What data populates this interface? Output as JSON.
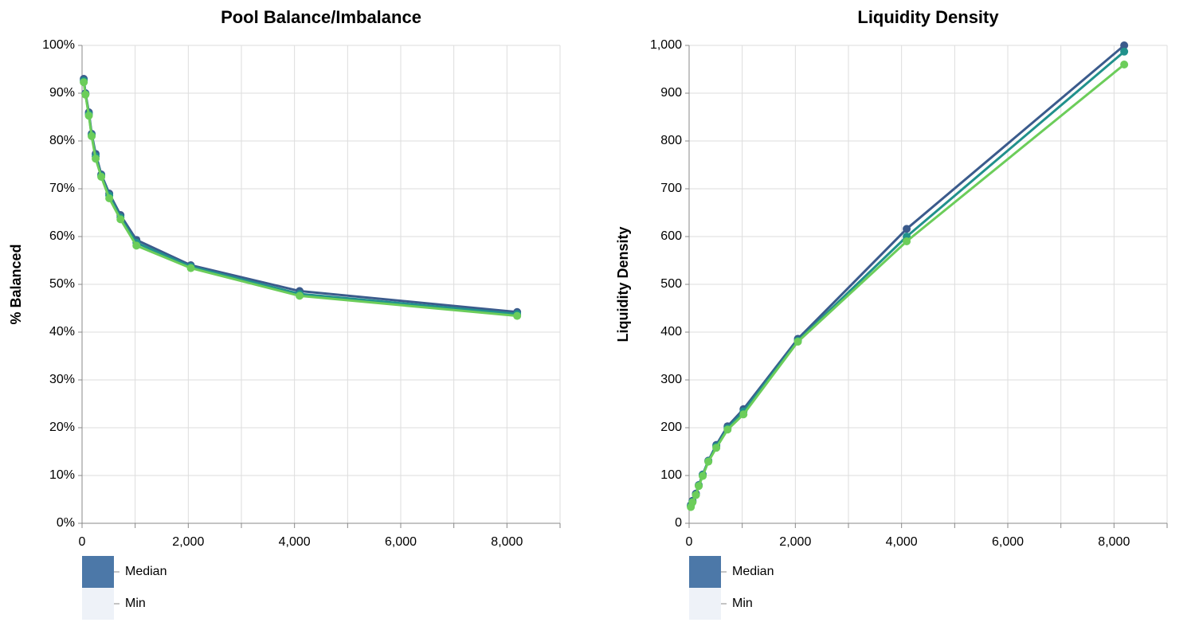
{
  "chart_data": [
    {
      "type": "line",
      "title": "Pool Balance/Imbalance",
      "ylabel": "% Balanced",
      "x": [
        32,
        64,
        128,
        181,
        256,
        362,
        512,
        724,
        1024,
        2048,
        4096,
        8192
      ],
      "series": [
        {
          "color": "#3b5b8c",
          "values": [
            93,
            90,
            86,
            81.5,
            77.3,
            73,
            69,
            64.5,
            59.3,
            54,
            48.6,
            44.2
          ]
        },
        {
          "color": "#21918c",
          "values": [
            92.6,
            89.8,
            85.6,
            81.2,
            76.8,
            72.7,
            68.6,
            64,
            58.7,
            53.7,
            48,
            43.8
          ]
        },
        {
          "color": "#6ccd5a",
          "values": [
            92.3,
            89.7,
            85.3,
            81,
            76.3,
            72.5,
            68,
            63.6,
            58.1,
            53.4,
            47.6,
            43.4
          ]
        }
      ],
      "xlim": [
        0,
        9000
      ],
      "xticks": [
        0,
        {
          "value": 2000,
          "label": "2,000"
        },
        {
          "value": 4000,
          "label": "4,000"
        },
        {
          "value": 6000,
          "label": "6,000"
        },
        {
          "value": 8000,
          "label": "8,000"
        }
      ],
      "x_minor_ticks": [
        1000,
        3000,
        5000,
        7000,
        9000
      ],
      "ylim": [
        0,
        100
      ],
      "yticks": [
        {
          "value": 0,
          "label": "0%"
        },
        {
          "value": 10,
          "label": "10%"
        },
        {
          "value": 20,
          "label": "20%"
        },
        {
          "value": 30,
          "label": "30%"
        },
        {
          "value": 40,
          "label": "40%"
        },
        {
          "value": 50,
          "label": "50%"
        },
        {
          "value": 60,
          "label": "60%"
        },
        {
          "value": 70,
          "label": "70%"
        },
        {
          "value": 80,
          "label": "80%"
        },
        {
          "value": 90,
          "label": "90%"
        },
        {
          "value": 100,
          "label": "100%"
        }
      ],
      "grid": true,
      "legend": {
        "labels": [
          "Median",
          "Min"
        ],
        "colors": [
          "#4c78a8",
          "#eef2f8"
        ]
      }
    },
    {
      "type": "line",
      "title": "Liquidity Density",
      "ylabel": "Liquidity Density",
      "x": [
        32,
        64,
        128,
        181,
        256,
        362,
        512,
        724,
        1024,
        2048,
        4096,
        8192
      ],
      "series": [
        {
          "color": "#3b5b8c",
          "values": [
            38,
            47,
            62,
            80,
            102,
            131,
            164,
            203,
            239,
            386,
            616,
            1000
          ]
        },
        {
          "color": "#21918c",
          "values": [
            36,
            45,
            60,
            79,
            101,
            130,
            161,
            199,
            234,
            382,
            600,
            987
          ]
        },
        {
          "color": "#6ccd5a",
          "values": [
            34,
            44,
            59,
            78,
            99,
            129,
            158,
            196,
            228,
            380,
            590,
            960
          ]
        }
      ],
      "xlim": [
        0,
        9000
      ],
      "xticks": [
        0,
        {
          "value": 2000,
          "label": "2,000"
        },
        {
          "value": 4000,
          "label": "4,000"
        },
        {
          "value": 6000,
          "label": "6,000"
        },
        {
          "value": 8000,
          "label": "8,000"
        }
      ],
      "x_minor_ticks": [
        1000,
        3000,
        5000,
        7000,
        9000
      ],
      "ylim": [
        0,
        1000
      ],
      "yticks": [
        0,
        100,
        200,
        300,
        400,
        500,
        600,
        700,
        800,
        900,
        {
          "value": 1000,
          "label": "1,000"
        }
      ],
      "grid": true,
      "legend": {
        "labels": [
          "Median",
          "Min"
        ],
        "colors": [
          "#4c78a8",
          "#eef2f8"
        ]
      }
    }
  ]
}
